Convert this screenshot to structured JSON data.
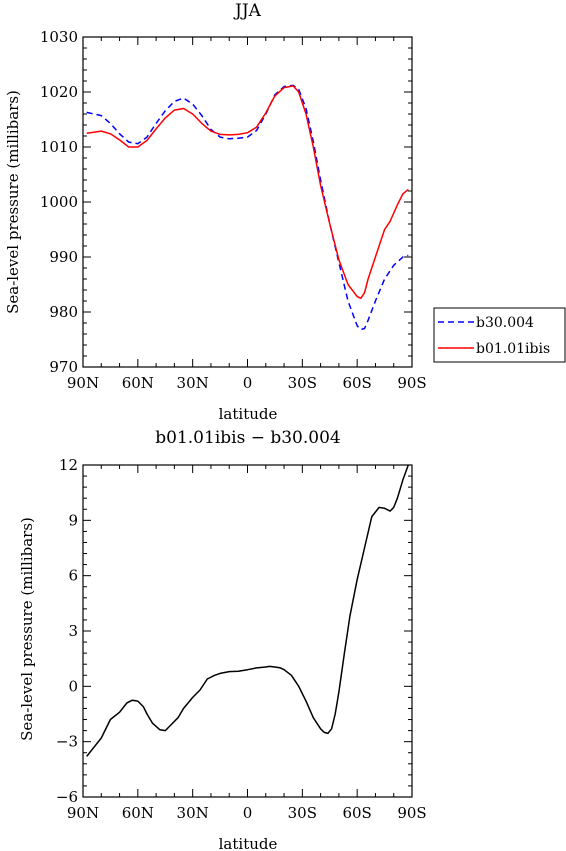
{
  "chart_data": [
    {
      "type": "line",
      "title": "JJA",
      "xlabel": "latitude",
      "ylabel": "Sea-level pressure (millibars)",
      "xlim": [
        90,
        -90
      ],
      "ylim": [
        970,
        1030
      ],
      "x_ticks": [
        90,
        60,
        30,
        0,
        -30,
        -60,
        -90
      ],
      "x_tick_labels": [
        "90N",
        "60N",
        "30N",
        "0",
        "30S",
        "60S",
        "90S"
      ],
      "y_ticks": [
        970,
        980,
        990,
        1000,
        1010,
        1020,
        1030
      ],
      "y_tick_labels": [
        "970",
        "980",
        "990",
        "1000",
        "1010",
        "1020",
        "1030"
      ],
      "legend_position": "right, outside plot",
      "series": [
        {
          "name": "b30.004",
          "color": "#0000ff",
          "dash": "dashed",
          "x": [
            88,
            80,
            75,
            70,
            65,
            60,
            55,
            50,
            45,
            40,
            35,
            30,
            25,
            20,
            15,
            10,
            5,
            0,
            -5,
            -10,
            -15,
            -20,
            -25,
            -28,
            -32,
            -36,
            -40,
            -45,
            -50,
            -55,
            -60,
            -62,
            -64,
            -66,
            -70,
            -75,
            -80,
            -85,
            -88
          ],
          "y": [
            1016.3,
            1015.7,
            1014.3,
            1012.4,
            1010.9,
            1010.6,
            1011.8,
            1014.3,
            1016.6,
            1018.3,
            1018.9,
            1017.8,
            1015.7,
            1013.2,
            1011.8,
            1011.5,
            1011.6,
            1011.8,
            1013.0,
            1016.0,
            1019.5,
            1021.0,
            1021.2,
            1020.5,
            1017.0,
            1011.0,
            1004.0,
            996.0,
            989.0,
            982.0,
            977.5,
            976.8,
            977.0,
            978.5,
            982.0,
            986.0,
            988.5,
            990.0,
            990.3
          ]
        },
        {
          "name": "b01.01ibis",
          "color": "#ff0000",
          "dash": "solid",
          "x": [
            88,
            80,
            75,
            70,
            65,
            60,
            55,
            50,
            45,
            40,
            35,
            30,
            25,
            20,
            15,
            10,
            5,
            0,
            -5,
            -10,
            -15,
            -20,
            -25,
            -28,
            -32,
            -36,
            -40,
            -45,
            -50,
            -55,
            -60,
            -62,
            -64,
            -66,
            -70,
            -75,
            -78,
            -82,
            -85,
            -88
          ],
          "y": [
            1012.5,
            1012.9,
            1012.4,
            1011.3,
            1010.0,
            1010.0,
            1011.2,
            1013.3,
            1015.3,
            1016.7,
            1017.0,
            1016.0,
            1014.3,
            1012.9,
            1012.3,
            1012.2,
            1012.3,
            1012.6,
            1013.6,
            1016.2,
            1019.3,
            1020.8,
            1021.1,
            1020.0,
            1016.0,
            1010.0,
            1003.0,
            996.0,
            989.5,
            985.0,
            982.8,
            982.5,
            983.5,
            986.0,
            990.0,
            995.0,
            996.5,
            999.5,
            1001.5,
            1002.3
          ]
        }
      ]
    },
    {
      "type": "line",
      "title": "b01.01ibis − b30.004",
      "xlabel": "latitude",
      "ylabel": "Sea-level pressure (millibars)",
      "xlim": [
        90,
        -90
      ],
      "ylim": [
        -6,
        12
      ],
      "x_ticks": [
        90,
        60,
        30,
        0,
        -30,
        -60,
        -90
      ],
      "x_tick_labels": [
        "90N",
        "60N",
        "30N",
        "0",
        "30S",
        "60S",
        "90S"
      ],
      "y_ticks": [
        -6,
        -3,
        0,
        3,
        6,
        9,
        12
      ],
      "y_tick_labels": [
        "−6",
        "−3",
        "0",
        "3",
        "6",
        "9",
        "12"
      ],
      "series": [
        {
          "color": "#000000",
          "dash": "solid",
          "x": [
            88,
            84,
            80,
            75,
            70,
            66,
            63,
            60,
            57,
            55,
            52,
            48,
            45,
            42,
            38,
            35,
            30,
            26,
            22,
            18,
            15,
            10,
            5,
            0,
            -5,
            -10,
            -12,
            -15,
            -18,
            -20,
            -24,
            -28,
            -32,
            -36,
            -40,
            -42,
            -44,
            -46,
            -48,
            -50,
            -53,
            -56,
            -60,
            -64,
            -68,
            -72,
            -75,
            -78,
            -80,
            -82,
            -85,
            -88
          ],
          "y": [
            -3.8,
            -3.3,
            -2.8,
            -1.8,
            -1.4,
            -0.9,
            -0.75,
            -0.8,
            -1.1,
            -1.5,
            -2.0,
            -2.35,
            -2.4,
            -2.1,
            -1.7,
            -1.2,
            -0.6,
            -0.2,
            0.4,
            0.6,
            0.7,
            0.8,
            0.82,
            0.9,
            1.0,
            1.05,
            1.08,
            1.05,
            1.0,
            0.9,
            0.6,
            0.0,
            -0.8,
            -1.7,
            -2.3,
            -2.5,
            -2.55,
            -2.3,
            -1.5,
            -0.3,
            1.8,
            3.8,
            5.8,
            7.5,
            9.2,
            9.7,
            9.65,
            9.5,
            9.7,
            10.2,
            11.2,
            12.0
          ]
        }
      ]
    }
  ]
}
